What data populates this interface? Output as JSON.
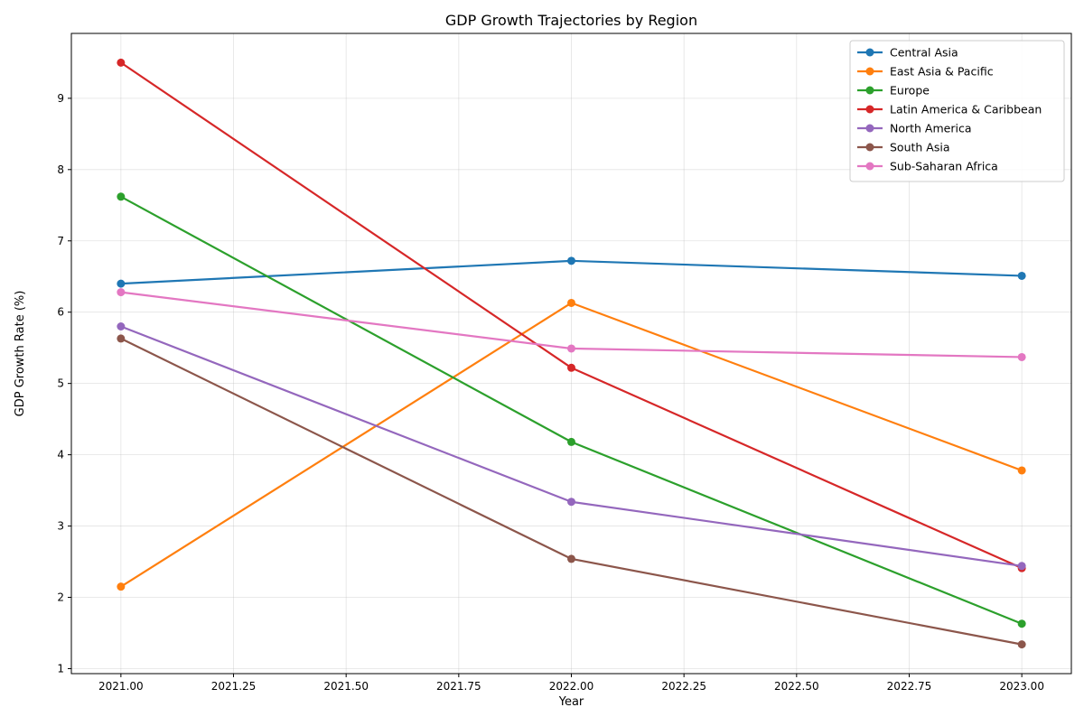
{
  "chart_data": {
    "type": "line",
    "title": "GDP Growth Trajectories by Region",
    "xlabel": "Year",
    "ylabel": "GDP Growth Rate (%)",
    "x": [
      2021,
      2022,
      2023
    ],
    "xlim": [
      2020.89,
      2023.11
    ],
    "ylim": [
      0.93,
      9.91
    ],
    "x_ticks": [
      2021.0,
      2021.25,
      2021.5,
      2021.75,
      2022.0,
      2022.25,
      2022.5,
      2022.75,
      2023.0
    ],
    "x_tick_labels": [
      "2021.00",
      "2021.25",
      "2021.50",
      "2021.75",
      "2022.00",
      "2022.25",
      "2022.50",
      "2022.75",
      "2023.00"
    ],
    "y_ticks": [
      1,
      2,
      3,
      4,
      5,
      6,
      7,
      8,
      9
    ],
    "y_tick_labels": [
      "1",
      "2",
      "3",
      "4",
      "5",
      "6",
      "7",
      "8",
      "9"
    ],
    "grid": true,
    "legend_position": "top-right",
    "series": [
      {
        "name": "Central Asia",
        "color": "#1f77b4",
        "values": [
          6.4,
          6.72,
          6.51
        ]
      },
      {
        "name": "East Asia & Pacific",
        "color": "#ff7f0e",
        "values": [
          2.15,
          6.13,
          3.78
        ]
      },
      {
        "name": "Europe",
        "color": "#2ca02c",
        "values": [
          7.62,
          4.18,
          1.63
        ]
      },
      {
        "name": "Latin America & Caribbean",
        "color": "#d62728",
        "values": [
          9.5,
          5.22,
          2.41
        ]
      },
      {
        "name": "North America",
        "color": "#9467bd",
        "values": [
          5.8,
          3.34,
          2.44
        ]
      },
      {
        "name": "South Asia",
        "color": "#8c564b",
        "values": [
          5.63,
          2.54,
          1.34
        ]
      },
      {
        "name": "Sub-Saharan Africa",
        "color": "#e377c2",
        "values": [
          6.28,
          5.49,
          5.37
        ]
      }
    ]
  }
}
